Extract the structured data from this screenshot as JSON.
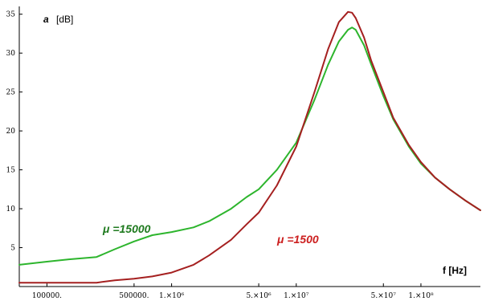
{
  "chart_data": {
    "type": "line",
    "title": "",
    "xlabel": "f [Hz]",
    "ylabel_symbol": "a",
    "ylabel_unit": "[dB]",
    "xscale": "log",
    "xlim": [
      60000,
      300000000
    ],
    "ylim": [
      0,
      36
    ],
    "grid": false,
    "x_ticks": [
      {
        "value": 100000,
        "label": "100000."
      },
      {
        "value": 500000,
        "label": "500000."
      },
      {
        "value": 1000000,
        "label": "1.×10⁶"
      },
      {
        "value": 5000000,
        "label": "5.×10⁶"
      },
      {
        "value": 10000000,
        "label": "1.×10⁷"
      },
      {
        "value": 50000000,
        "label": "5.×10⁷"
      },
      {
        "value": 100000000,
        "label": "1.×10⁸"
      }
    ],
    "y_ticks": [
      {
        "value": 5,
        "label": "5"
      },
      {
        "value": 10,
        "label": "10"
      },
      {
        "value": 15,
        "label": "15"
      },
      {
        "value": 20,
        "label": "20"
      },
      {
        "value": 25,
        "label": "25"
      },
      {
        "value": 30,
        "label": "30"
      },
      {
        "value": 35,
        "label": "35"
      }
    ],
    "series": [
      {
        "name": "μ =15000",
        "label_symbol": "μ",
        "label_text": " =15000",
        "color": "#2db52d",
        "label_color": "#1f7a1f",
        "x": [
          60000,
          100000,
          150000,
          250000,
          350000,
          500000,
          700000,
          1000000,
          1500000,
          2000000,
          3000000,
          4000000,
          5000000,
          7000000,
          10000000,
          14000000,
          18000000,
          22000000,
          26000000,
          28000000,
          30000000,
          35000000,
          40000000,
          50000000,
          60000000,
          80000000,
          100000000,
          130000000,
          170000000,
          230000000,
          300000000
        ],
        "y": [
          2.8,
          3.2,
          3.5,
          3.8,
          4.8,
          5.8,
          6.6,
          7.0,
          7.6,
          8.4,
          10.0,
          11.5,
          12.5,
          15.0,
          18.5,
          24.0,
          28.5,
          31.5,
          33.0,
          33.3,
          33.0,
          31.0,
          28.5,
          24.5,
          21.5,
          18.0,
          15.8,
          14.0,
          12.5,
          11.0,
          9.8
        ]
      },
      {
        "name": "μ =1500",
        "label_symbol": "μ",
        "label_text": " =1500",
        "color": "#a52020",
        "label_color": "#cc1f1f",
        "x": [
          60000,
          100000,
          150000,
          250000,
          350000,
          500000,
          700000,
          1000000,
          1500000,
          2000000,
          3000000,
          4000000,
          5000000,
          7000000,
          10000000,
          14000000,
          18000000,
          22000000,
          26000000,
          28000000,
          30000000,
          35000000,
          40000000,
          50000000,
          60000000,
          80000000,
          100000000,
          130000000,
          170000000,
          230000000,
          300000000
        ],
        "y": [
          0.5,
          0.5,
          0.5,
          0.5,
          0.8,
          1.0,
          1.3,
          1.8,
          2.8,
          4.0,
          6.0,
          8.0,
          9.5,
          13.0,
          18.0,
          25.0,
          30.5,
          34.0,
          35.3,
          35.2,
          34.5,
          32.0,
          29.0,
          25.0,
          21.7,
          18.2,
          16.0,
          14.0,
          12.5,
          11.0,
          9.8
        ]
      }
    ]
  }
}
